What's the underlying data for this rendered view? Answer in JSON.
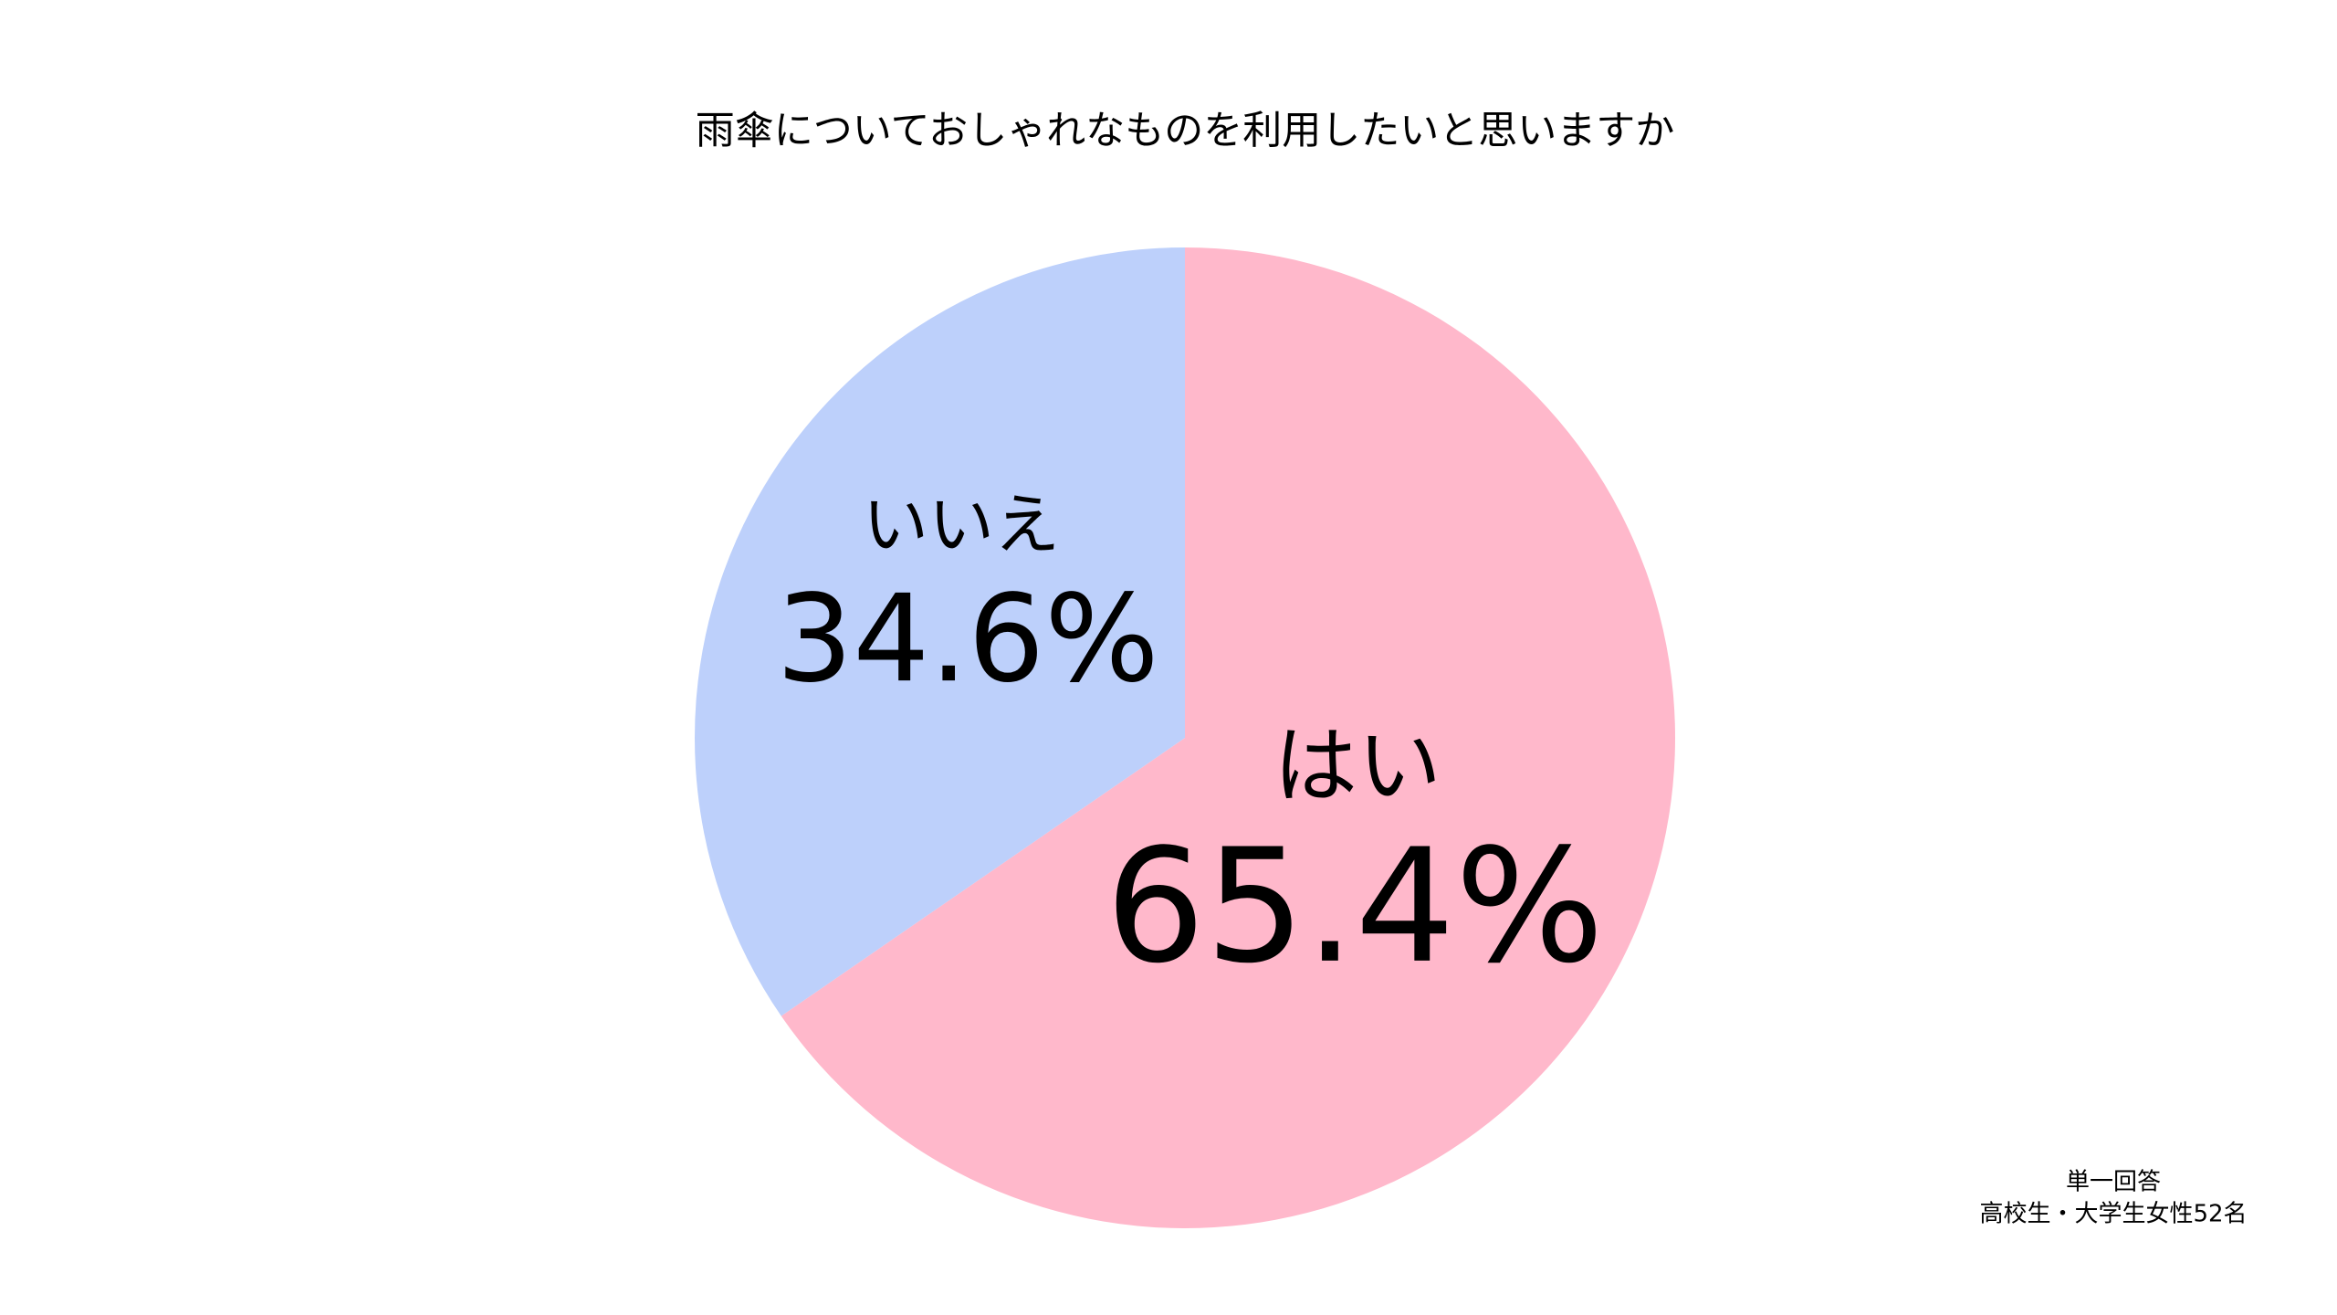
{
  "chart_data": {
    "type": "pie",
    "title": "雨傘についておしゃれなものを利用したいと思いますか",
    "categories": [
      "はい",
      "いいえ"
    ],
    "values": [
      65.4,
      34.6
    ],
    "value_labels": [
      "65.4%",
      "34.6%"
    ],
    "colors": [
      "#FFB8CB",
      "#BDD0FB"
    ],
    "notes": [
      "単一回答",
      "高校生・大学生女性52名"
    ]
  }
}
